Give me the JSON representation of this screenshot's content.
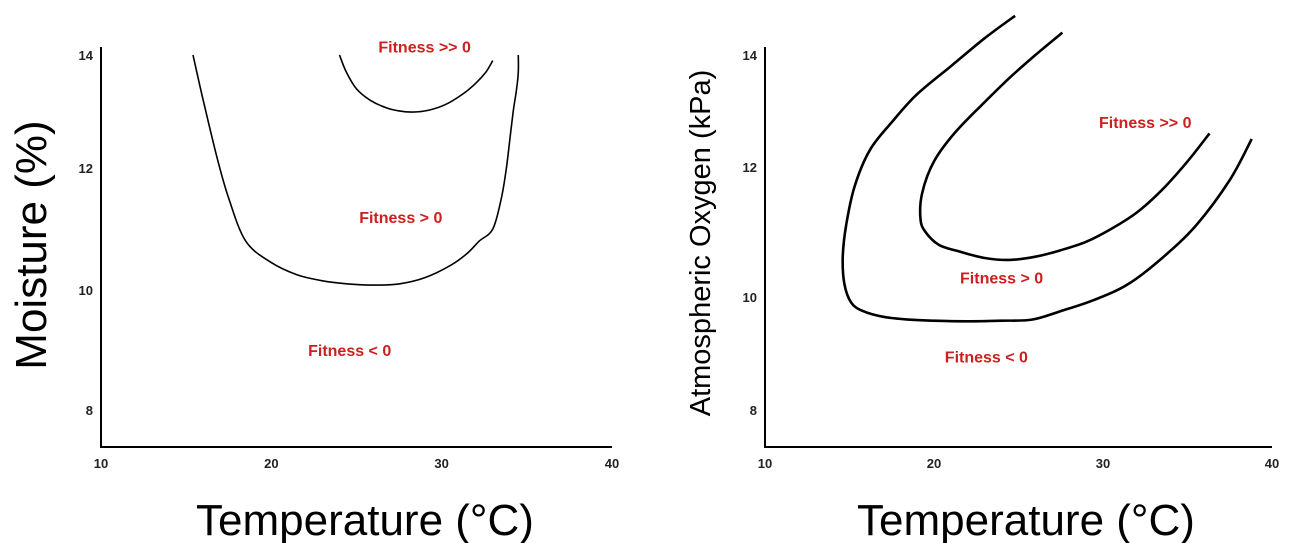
{
  "colors": {
    "region_label": "#cc1f1f",
    "axis": "#000000",
    "curve": "#000000"
  },
  "chart_data": [
    {
      "type": "line",
      "title": "",
      "xlabel": "Temperature (°C)",
      "ylabel": "Moisture (%)",
      "xlim": [
        10,
        40
      ],
      "ylim": [
        7.3,
        14.1
      ],
      "x_ticks": [
        "10",
        "20",
        "30",
        "40"
      ],
      "y_ticks": [
        "8",
        "10",
        "12",
        "14"
      ],
      "grid": false,
      "series": [
        {
          "x": [
            15.4,
            16.0,
            16.8,
            17.5,
            18.5,
            20.0,
            21.5,
            23.0,
            24.5,
            26.0,
            27.5,
            29.0,
            30.5,
            31.5,
            32.2,
            33.0,
            33.5,
            33.8,
            34.0,
            34.2,
            34.4,
            34.5,
            34.5
          ],
          "y": [
            14.0,
            13.2,
            12.2,
            11.5,
            10.8,
            10.45,
            10.25,
            10.15,
            10.1,
            10.08,
            10.1,
            10.2,
            10.4,
            10.6,
            10.8,
            11.0,
            11.5,
            12.0,
            12.5,
            13.0,
            13.4,
            13.7,
            14.0
          ]
        },
        {
          "x": [
            24.0,
            24.4,
            25.0,
            25.8,
            26.7,
            27.5,
            28.3,
            29.2,
            30.2,
            31.2,
            32.0,
            32.6,
            33.0
          ],
          "y": [
            14.0,
            13.7,
            13.4,
            13.2,
            13.07,
            13.01,
            12.99,
            13.02,
            13.12,
            13.3,
            13.5,
            13.7,
            13.9
          ]
        }
      ],
      "annotations": [
        {
          "text": "Fitness >> 0",
          "x": 29.0,
          "y": 14.15
        },
        {
          "text": "Fitness > 0",
          "x": 27.6,
          "y": 11.2
        },
        {
          "text": "Fitness < 0",
          "x": 24.6,
          "y": 9.0
        }
      ]
    },
    {
      "type": "line",
      "title": "",
      "xlabel": "Temperature (°C)",
      "ylabel": "Atmospheric Oxygen (kPa)",
      "xlim": [
        10,
        40
      ],
      "ylim": [
        7.3,
        14.1
      ],
      "x_ticks": [
        "10",
        "20",
        "30",
        "40"
      ],
      "y_ticks": [
        "8",
        "10",
        "12",
        "14"
      ],
      "grid": false,
      "series": [
        {
          "x": [
            24.8,
            23.0,
            21.0,
            19.0,
            17.5,
            16.2,
            15.3,
            14.8,
            14.6,
            14.7,
            15.1,
            15.8,
            17.0,
            18.5,
            20.0,
            22.0,
            24.0,
            25.8,
            27.5,
            29.5,
            31.5,
            33.5,
            35.5,
            37.5,
            38.8
          ],
          "y": [
            14.7,
            14.3,
            13.8,
            13.3,
            12.8,
            12.3,
            11.7,
            11.1,
            10.6,
            10.2,
            9.9,
            9.75,
            9.65,
            9.6,
            9.58,
            9.57,
            9.58,
            9.6,
            9.75,
            9.95,
            10.2,
            10.6,
            11.1,
            11.8,
            12.5
          ]
        },
        {
          "x": [
            27.6,
            26.0,
            24.5,
            22.8,
            21.2,
            20.0,
            19.3,
            19.2,
            19.5,
            20.3,
            21.5,
            23.0,
            24.5,
            26.0,
            27.5,
            29.0,
            30.5,
            32.0,
            33.5,
            35.0,
            36.3
          ],
          "y": [
            14.4,
            14.0,
            13.6,
            13.1,
            12.6,
            12.1,
            11.6,
            11.2,
            11.0,
            10.8,
            10.7,
            10.6,
            10.57,
            10.62,
            10.72,
            10.85,
            11.05,
            11.3,
            11.65,
            12.1,
            12.6
          ]
        }
      ],
      "annotations": [
        {
          "text": "Fitness >> 0",
          "x": 32.5,
          "y": 12.8
        },
        {
          "text": "Fitness > 0",
          "x": 24.0,
          "y": 10.3
        },
        {
          "text": "Fitness < 0",
          "x": 23.1,
          "y": 8.95
        }
      ]
    }
  ]
}
